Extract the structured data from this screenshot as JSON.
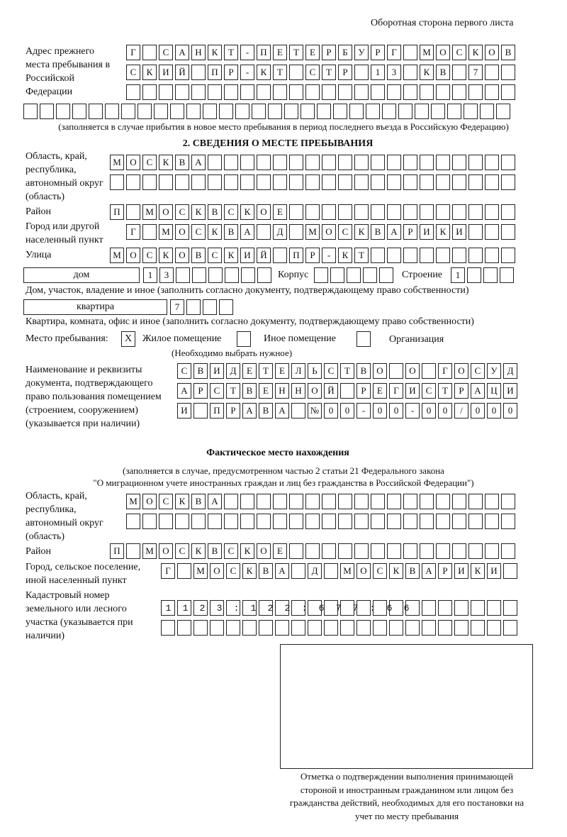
{
  "page_header": "Оборотная сторона первого листа",
  "previous_address": {
    "label": "Адрес прежнего места пребывания в Российской Федерации",
    "rows": [
      "Г САНКТ-ПЕТЕРБУРГ МОСКОВ",
      "СКИЙ ПР-КТ СТР 13 КВ 7  ",
      "                        ",
      "                              "
    ],
    "note": "(заполняется в случае прибытия в новое место пребывания в период последнего въезда в Российскую Федерацию)"
  },
  "section2": {
    "title": "2. СВЕДЕНИЯ О МЕСТЕ ПРЕБЫВАНИЯ",
    "region_label": "Область, край, республика, автономный округ (область)",
    "region_rows": [
      "МОСКВА                   ",
      "                         "
    ],
    "district_label": "Район",
    "district_row": "П МОСКВСКОЕ              ",
    "city_label": "Город или другой населенный пункт",
    "city_row": "Г МОСКВА Д МОСКВАРИКИ   ",
    "street_label": "Улица",
    "street_row": "МОСКОВСКИЙ ПР-КТ         ",
    "house_type": "дом",
    "house_row": "13      ",
    "korpus_label": "Корпус",
    "korpus_row": "     ",
    "building_label": "Строение",
    "building_row": "1   ",
    "house_note": "Дом, участок, владение и иное (заполнить согласно документу, подтверждающему право собственности)",
    "flat_type": "квартира",
    "flat_row": "7   ",
    "flat_note": "Квартира, комната, офис и иное (заполнить согласно документу, подтверждающему право собственности)",
    "stay_label": "Место пребывания:",
    "stay_options": [
      {
        "label": "Жилое помещение",
        "mark": "X"
      },
      {
        "label": "Иное помещение",
        "mark": ""
      },
      {
        "label": "Организация",
        "mark": ""
      }
    ],
    "stay_note": "(Необходимо выбрать нужное)",
    "doc_label": "Наименование и реквизиты документа, подтверждающего право пользования помещением (строением, сооружением) (указывается при наличии)",
    "doc_rows": [
      "СВИДЕТЕЛЬСТВО О ГОСУД",
      "АРСТВЕННОЙ РЕГИСТРАЦИ",
      "И ПРАВА №00-00-00/000"
    ]
  },
  "actual": {
    "title": "Фактическое место нахождения",
    "note1": "(заполняется в случае, предусмотренном частью 2 статьи 21 Федерального закона",
    "note2": "\"О миграционном учете иностранных граждан и лиц без гражданства в Российской Федерации\")",
    "region_label": "Область, край, республика, автономный округ (область)",
    "region_rows": [
      "МОСКВА                  ",
      "                        "
    ],
    "district_label": "Район",
    "district_row": "П МОСКВСКОЕ              ",
    "city_label": "Город, сельское поселение, иной населенный пункт",
    "city_row": "Г МОСКВА Д МОСКВАРИКИ ",
    "cadastral_label": "Кадастровый номер земельного или лесного участка (указывается при наличии)",
    "cadastral_rows": [
      "1123:122:677:66       ",
      "                      "
    ]
  },
  "stamp_caption": "Отметка о подтверждении выполнения принимающей стороной и иностранным гражданином или лицом без гражданства действий, необходимых для его постановки на учет по месту пребывания"
}
